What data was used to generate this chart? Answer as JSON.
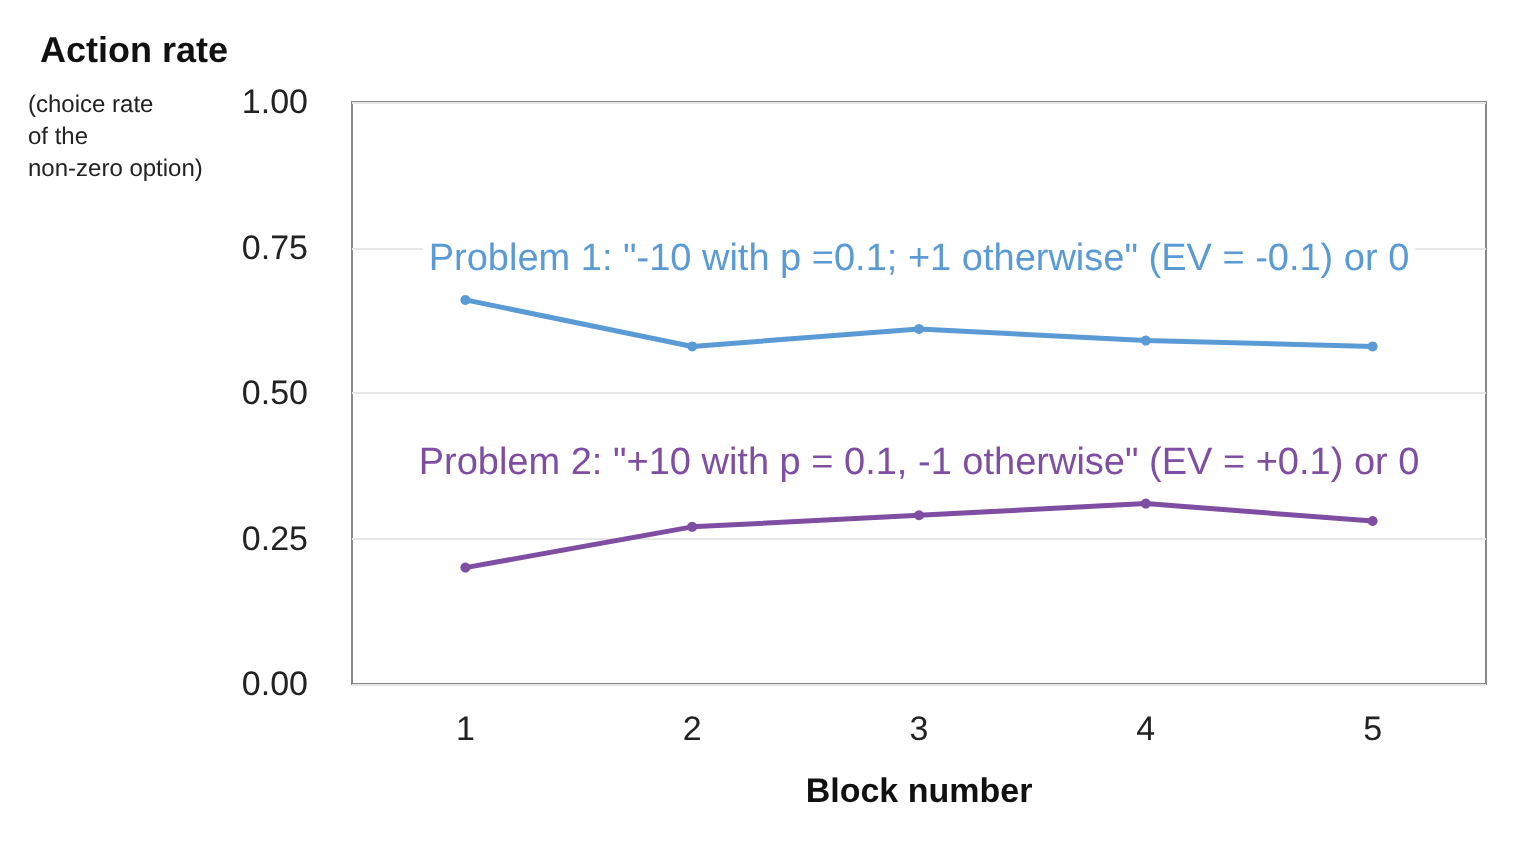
{
  "chart_data": {
    "type": "line",
    "xlabel": "Block number",
    "ylabel": "Action rate",
    "annotations": [
      "(choice rate of the non-zero option)"
    ],
    "categories": [
      "1",
      "2",
      "3",
      "4",
      "5"
    ],
    "series": [
      {
        "name": "Problem 1: \"-10 with p =0.1; +1 otherwise\" (EV = -0.1) or 0",
        "color": "#5b9bd5",
        "values": [
          0.66,
          0.58,
          0.61,
          0.59,
          0.58
        ]
      },
      {
        "name": "Problem 2: \"+10 with p = 0.1, -1 otherwise\" (EV = +0.1) or 0",
        "color": "#7f4ea3",
        "values": [
          0.2,
          0.27,
          0.29,
          0.31,
          0.28
        ]
      }
    ],
    "ylim": [
      0,
      1
    ],
    "yticks": [
      {
        "value": 0,
        "label": "0.00"
      },
      0.25,
      {
        "value": 0.5,
        "label": "0.50"
      },
      0.75,
      {
        "value": 1,
        "label": "1.00"
      }
    ],
    "grid": "y",
    "legend": false,
    "marker": "circle",
    "line_style": "solid"
  }
}
